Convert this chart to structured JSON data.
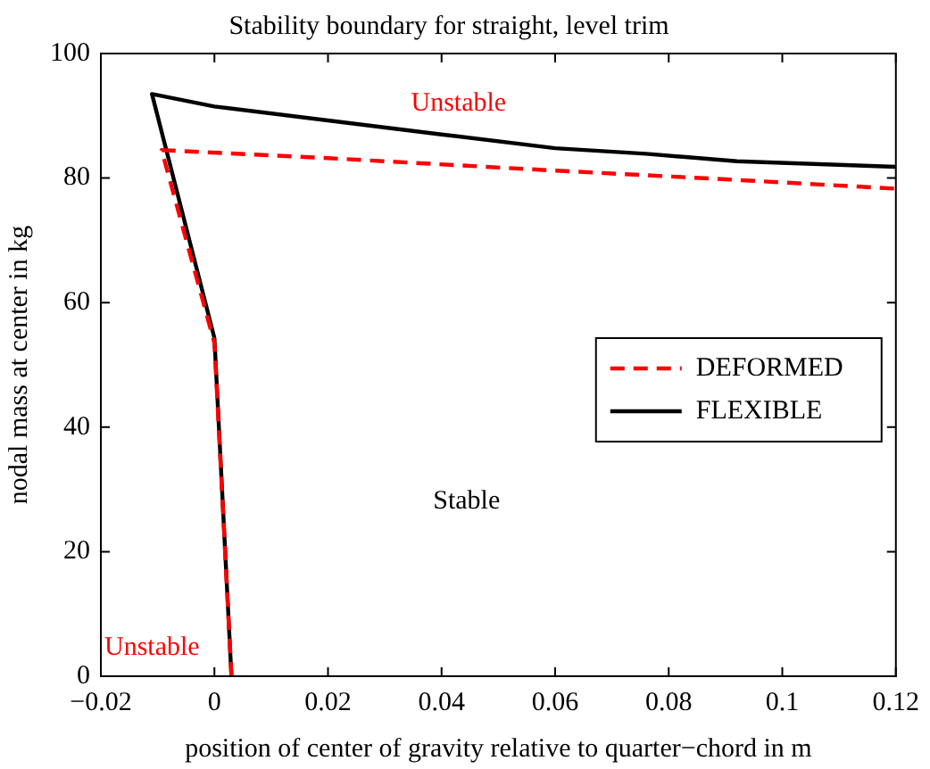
{
  "chart_data": {
    "type": "line",
    "title": "Stability boundary for straight, level trim",
    "xlabel": "position of center of gravity relative to quarter−chord in m",
    "ylabel": "nodal mass at center in kg",
    "series": [
      {
        "name": "DEFORMED",
        "color": "#ff0000",
        "line_style": "dashed",
        "x": [
          0.003,
          0.0,
          -0.0093,
          0.02,
          0.06,
          0.09,
          0.12
        ],
        "values": [
          0,
          53.5,
          84.5,
          83.2,
          81.2,
          79.8,
          78.3
        ]
      },
      {
        "name": "FLEXIBLE",
        "color": "#000000",
        "line_style": "solid",
        "x": [
          0.003,
          0.0,
          -0.011,
          0.0,
          0.04,
          0.06,
          0.076,
          0.092,
          0.12
        ],
        "values": [
          0,
          54.3,
          93.5,
          91.5,
          87,
          84.8,
          83.9,
          82.7,
          81.8
        ]
      }
    ],
    "xlim": [
      -0.02,
      0.12
    ],
    "xticks": [
      {
        "value": -0.02,
        "label": "−0.02"
      },
      0,
      0.02,
      0.04,
      0.06,
      0.08,
      0.1,
      0.12
    ],
    "ylim": [
      0,
      100
    ],
    "yticks": [
      0,
      20,
      40,
      60,
      80,
      100
    ],
    "grid": false,
    "legend": "right",
    "marker": "none",
    "annotations": [
      "Unstable",
      "Stable",
      "Unstable"
    ]
  }
}
